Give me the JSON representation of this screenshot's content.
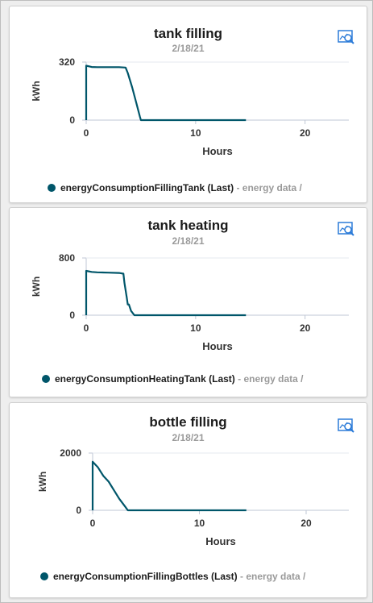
{
  "colors": {
    "series": "#00566a",
    "axis": "#bfc7d5",
    "icon": "#2b7bd8"
  },
  "cards": [
    {
      "title": "tank filling",
      "date": "2/18/21",
      "icon": "chart-zoom-icon",
      "legend": {
        "series": "energyConsumptionFillingTank (Last)",
        "source": "- energy data /"
      }
    },
    {
      "title": "tank heating",
      "date": "2/18/21",
      "icon": "chart-zoom-icon",
      "legend": {
        "series": "energyConsumptionHeatingTank (Last)",
        "source": "- energy data /"
      }
    },
    {
      "title": "bottle filling",
      "date": "2/18/21",
      "icon": "chart-zoom-icon",
      "legend": {
        "series": "energyConsumptionFillingBottles (Last)",
        "source": "- energy data /"
      }
    }
  ],
  "chart_data": [
    {
      "type": "line",
      "title": "tank filling",
      "xlabel": "Hours",
      "ylabel": "kWh",
      "xlim": [
        0,
        24
      ],
      "ylim": [
        0,
        320
      ],
      "x_ticks": [
        0,
        10,
        20
      ],
      "y_ticks": [
        0,
        320
      ],
      "series": [
        {
          "name": "energyConsumptionFillingTank (Last)",
          "x": [
            0,
            0,
            0.5,
            1,
            2,
            3,
            3.6,
            3.8,
            4.2,
            4.6,
            4.9,
            5,
            10,
            14.6
          ],
          "y": [
            0,
            300,
            293,
            292,
            292,
            292,
            290,
            260,
            180,
            90,
            20,
            0,
            0,
            0
          ]
        }
      ]
    },
    {
      "type": "line",
      "title": "tank heating",
      "xlabel": "Hours",
      "ylabel": "kWh",
      "xlim": [
        0,
        24
      ],
      "ylim": [
        0,
        800
      ],
      "x_ticks": [
        0,
        10,
        20
      ],
      "y_ticks": [
        0,
        800
      ],
      "series": [
        {
          "name": "energyConsumptionHeatingTank (Last)",
          "x": [
            0,
            0,
            0.5,
            1,
            2,
            3,
            3.4,
            3.5,
            3.7,
            3.8,
            3.9,
            4.1,
            4.4,
            10,
            14.6
          ],
          "y": [
            0,
            620,
            605,
            600,
            595,
            590,
            580,
            450,
            250,
            150,
            150,
            60,
            0,
            0,
            0
          ]
        }
      ]
    },
    {
      "type": "line",
      "title": "bottle filling",
      "xlabel": "Hours",
      "ylabel": "kWh",
      "xlim": [
        0,
        24
      ],
      "ylim": [
        0,
        2000
      ],
      "x_ticks": [
        0,
        10,
        20
      ],
      "y_ticks": [
        0,
        2000
      ],
      "series": [
        {
          "name": "energyConsumptionFillingBottles (Last)",
          "x": [
            0,
            0,
            0.5,
            1,
            1.5,
            2,
            2.5,
            3,
            3.3,
            10,
            14.4
          ],
          "y": [
            0,
            1700,
            1500,
            1200,
            1000,
            700,
            400,
            150,
            0,
            0,
            0
          ]
        }
      ]
    }
  ]
}
